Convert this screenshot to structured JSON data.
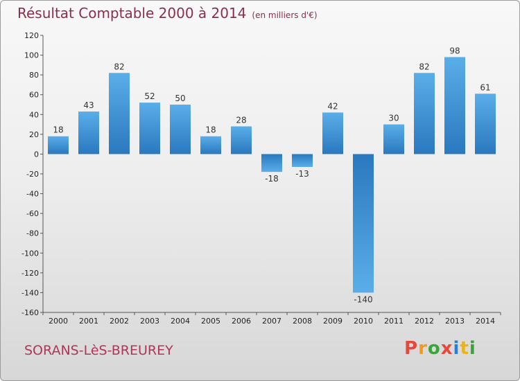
{
  "page": {
    "commune": "SORANS-LèS-BREUREY",
    "logo_text": "Proxiti"
  },
  "colors": {
    "bar_light": "#5aaee8",
    "bar_dark": "#2a78bf",
    "title": "#8a2e4a",
    "commune": "#b03556",
    "logo_letters": [
      "#e8483c",
      "#f39a1e",
      "#3aa43a",
      "#e8483c",
      "#2a7fd0",
      "#e8b41e",
      "#3aa43a"
    ]
  },
  "chart_data": {
    "type": "bar",
    "title": "Résultat Comptable 2000 à 2014",
    "subtitle": "(en milliers d'€)",
    "xlabel": "",
    "ylabel": "",
    "categories": [
      "2000",
      "2001",
      "2002",
      "2003",
      "2004",
      "2005",
      "2006",
      "2007",
      "2008",
      "2009",
      "2010",
      "2011",
      "2012",
      "2013",
      "2014"
    ],
    "values": [
      18,
      43,
      82,
      52,
      50,
      18,
      28,
      -18,
      -13,
      42,
      -140,
      30,
      82,
      98,
      61
    ],
    "value_labels": [
      "18",
      "43",
      "82",
      "52",
      "50",
      "18",
      "28",
      "-18",
      "-13",
      "42",
      "-140",
      "30",
      "82",
      "98",
      "61"
    ],
    "ylim": [
      -160,
      120
    ],
    "yticks": [
      120,
      100,
      80,
      60,
      40,
      20,
      0,
      -20,
      -40,
      -60,
      -80,
      -100,
      -120,
      -140,
      -160
    ],
    "ytick_labels": [
      "120",
      "100",
      "80",
      "60",
      "40",
      "20",
      "0",
      "-20",
      "-40",
      "-60",
      "-80",
      "-100",
      "-120",
      "-140",
      "-160"
    ],
    "grid": false,
    "legend": "none"
  }
}
